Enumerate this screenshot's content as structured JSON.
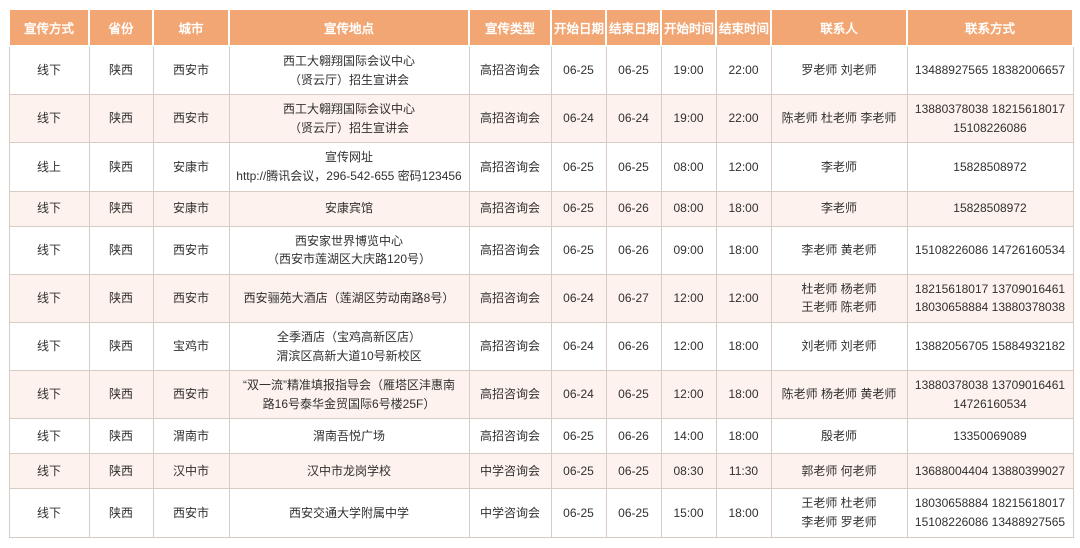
{
  "colors": {
    "header_bg": "#F1A674",
    "header_text": "#FFFFFF",
    "stripe_bg": "#FDF2ED",
    "border": "#D8CBC5",
    "text": "#303030",
    "page_bg": "#FFFFFF"
  },
  "table": {
    "headers": [
      "宣传方式",
      "省份",
      "城市",
      "宣传地点",
      "宣传类型",
      "开始日期",
      "结束日期",
      "开始时间",
      "结束时间",
      "联系人",
      "联系方式"
    ],
    "column_keys": [
      "method",
      "province",
      "city",
      "location",
      "type",
      "start-date",
      "end-date",
      "start-time",
      "end-time",
      "contacts",
      "phone"
    ],
    "rows": [
      [
        "线下",
        "陕西",
        "西安市",
        "西工大翱翔国际会议中心\n（贤云厅）招生宣讲会",
        "高招咨询会",
        "06-25",
        "06-25",
        "19:00",
        "22:00",
        "罗老师 刘老师",
        "13488927565 18382006657"
      ],
      [
        "线下",
        "陕西",
        "西安市",
        "西工大翱翔国际会议中心\n（贤云厅）招生宣讲会",
        "高招咨询会",
        "06-24",
        "06-24",
        "19:00",
        "22:00",
        "陈老师 杜老师 李老师",
        "13880378038 18215618017\n15108226086"
      ],
      [
        "线上",
        "陕西",
        "安康市",
        "宣传网址\nhttp://腾讯会议，296-542-655  密码123456",
        "高招咨询会",
        "06-25",
        "06-25",
        "08:00",
        "12:00",
        "李老师",
        "15828508972"
      ],
      [
        "线下",
        "陕西",
        "安康市",
        "安康宾馆",
        "高招咨询会",
        "06-25",
        "06-26",
        "08:00",
        "18:00",
        "李老师",
        "15828508972"
      ],
      [
        "线下",
        "陕西",
        "西安市",
        "西安家世界博览中心\n（西安市莲湖区大庆路120号）",
        "高招咨询会",
        "06-25",
        "06-26",
        "09:00",
        "18:00",
        "李老师 黄老师",
        "15108226086 14726160534"
      ],
      [
        "线下",
        "陕西",
        "西安市",
        "西安骊苑大酒店（莲湖区劳动南路8号）",
        "高招咨询会",
        "06-24",
        "06-27",
        "12:00",
        "12:00",
        "杜老师 杨老师\n王老师 陈老师",
        "18215618017 13709016461\n18030658884 13880378038"
      ],
      [
        "线下",
        "陕西",
        "宝鸡市",
        "全季酒店（宝鸡高新区店）\n渭滨区高新大道10号新校区",
        "高招咨询会",
        "06-24",
        "06-26",
        "12:00",
        "18:00",
        "刘老师 刘老师",
        "13882056705 15884932182"
      ],
      [
        "线下",
        "陕西",
        "西安市",
        "“双一流”精准填报指导会（雁塔区沣惠南\n路16号泰华金贸国际6号楼25F）",
        "高招咨询会",
        "06-24",
        "06-25",
        "12:00",
        "18:00",
        "陈老师 杨老师 黄老师",
        "13880378038 13709016461\n14726160534"
      ],
      [
        "线下",
        "陕西",
        "渭南市",
        "渭南吾悦广场",
        "高招咨询会",
        "06-25",
        "06-26",
        "14:00",
        "18:00",
        "殷老师",
        "13350069089"
      ],
      [
        "线下",
        "陕西",
        "汉中市",
        "汉中市龙岗学校",
        "中学咨询会",
        "06-25",
        "06-25",
        "08:30",
        "11:30",
        "郭老师 何老师",
        "13688004404 13880399027"
      ],
      [
        "线下",
        "陕西",
        "西安市",
        "西安交通大学附属中学",
        "中学咨询会",
        "06-25",
        "06-25",
        "15:00",
        "18:00",
        "王老师 杜老师\n李老师 罗老师",
        "18030658884 18215618017\n15108226086 13488927565"
      ]
    ]
  }
}
